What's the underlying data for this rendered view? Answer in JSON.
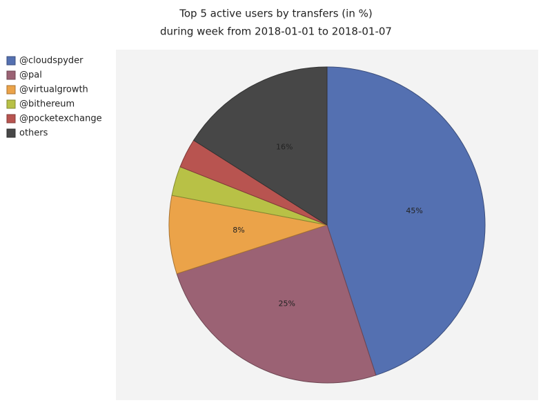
{
  "chart_data": {
    "type": "pie",
    "title": "Top 5 active users by transfers (in %)",
    "subtitle": "during week from 2018-01-01 to 2018-01-07",
    "categories": [
      "@cloudspyder",
      "@pal",
      "@virtualgrowth",
      "@bithereum",
      "@pocketexchange",
      "others"
    ],
    "values": [
      45,
      25,
      8,
      3,
      3,
      16
    ],
    "value_labels": [
      "45%",
      "25%",
      "8%",
      null,
      null,
      "16%"
    ],
    "colors": [
      "#5470b1",
      "#9b6274",
      "#eba349",
      "#b8c146",
      "#b85450",
      "#474747"
    ],
    "legend": "top-left"
  }
}
